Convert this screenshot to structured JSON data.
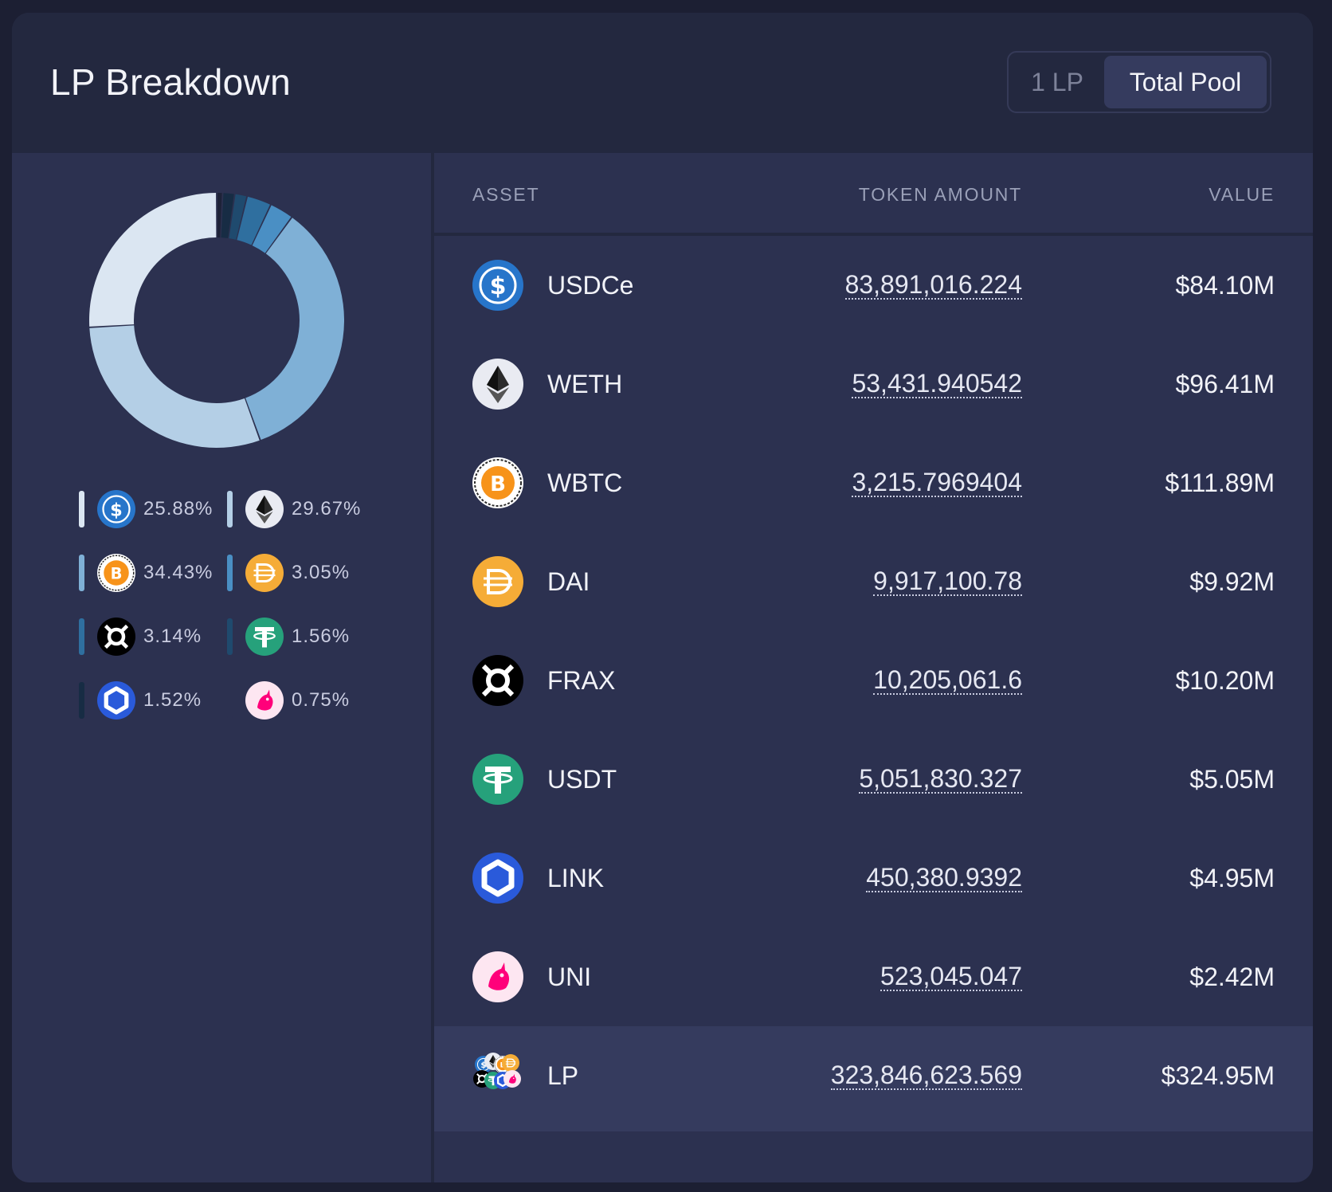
{
  "header": {
    "title": "LP Breakdown",
    "toggle": {
      "one_lp": "1 LP",
      "total_pool": "Total Pool",
      "selected": "Total Pool"
    }
  },
  "table": {
    "columns": {
      "asset": "ASSET",
      "amount": "TOKEN AMOUNT",
      "value": "VALUE"
    },
    "rows": [
      {
        "symbol": "USDCe",
        "amount": "83,891,016.224",
        "value": "$84.10M",
        "icon": "usdc-icon"
      },
      {
        "symbol": "WETH",
        "amount": "53,431.940542",
        "value": "$96.41M",
        "icon": "eth-icon"
      },
      {
        "symbol": "WBTC",
        "amount": "3,215.7969404",
        "value": "$111.89M",
        "icon": "btc-icon"
      },
      {
        "symbol": "DAI",
        "amount": "9,917,100.78",
        "value": "$9.92M",
        "icon": "dai-icon"
      },
      {
        "symbol": "FRAX",
        "amount": "10,205,061.6",
        "value": "$10.20M",
        "icon": "frax-icon"
      },
      {
        "symbol": "USDT",
        "amount": "5,051,830.327",
        "value": "$5.05M",
        "icon": "usdt-icon"
      },
      {
        "symbol": "LINK",
        "amount": "450,380.9392",
        "value": "$4.95M",
        "icon": "link-icon"
      },
      {
        "symbol": "UNI",
        "amount": "523,045.047",
        "value": "$2.42M",
        "icon": "uni-icon"
      }
    ],
    "total": {
      "symbol": "LP",
      "amount": "323,846,623.569",
      "value": "$324.95M",
      "icon": "lp-stack-icon"
    }
  },
  "legend": [
    {
      "token": "USDCe",
      "pct": "25.88%",
      "color": "#dbe6f2"
    },
    {
      "token": "WETH",
      "pct": "29.67%",
      "color": "#b4cfe6"
    },
    {
      "token": "WBTC",
      "pct": "34.43%",
      "color": "#7fb0d6"
    },
    {
      "token": "DAI",
      "pct": "3.05%",
      "color": "#4a8fc4"
    },
    {
      "token": "FRAX",
      "pct": "3.14%",
      "color": "#2f6f9f"
    },
    {
      "token": "USDT",
      "pct": "1.56%",
      "color": "#1f4a6e"
    },
    {
      "token": "LINK",
      "pct": "1.52%",
      "color": "#172c44"
    },
    {
      "token": "UNI",
      "pct": "0.75%",
      "color": "#2c3150"
    }
  ],
  "chart_data": {
    "type": "pie",
    "categories": [
      "USDCe",
      "WETH",
      "WBTC",
      "DAI",
      "FRAX",
      "USDT",
      "LINK",
      "UNI"
    ],
    "values": [
      25.88,
      29.67,
      34.43,
      3.05,
      3.14,
      1.56,
      1.52,
      0.75
    ],
    "colors": [
      "#dbe6f2",
      "#b4cfe6",
      "#7fb0d6",
      "#4a8fc4",
      "#2f6f9f",
      "#1f4a6e",
      "#172c44",
      "#2c3150"
    ],
    "donut": true
  }
}
